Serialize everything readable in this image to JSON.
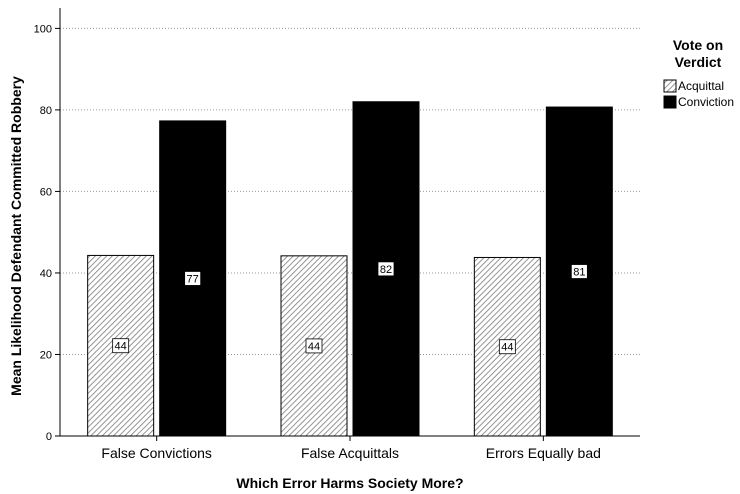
{
  "chart_data": {
    "type": "bar",
    "title": "",
    "xlabel": "Which Error Harms Society More?",
    "ylabel": "Mean Likelihood Defendant Committed Robbery",
    "ylim": [
      0,
      105
    ],
    "yticks": [
      0,
      20,
      40,
      60,
      80,
      100
    ],
    "grid": "horizontal dotted",
    "categories": [
      "False Convictions",
      "False Acquittals",
      "Errors Equally bad"
    ],
    "legend": {
      "title_line1": "Vote on",
      "title_line2": "Verdict",
      "placement": "right"
    },
    "series": [
      {
        "name": "Acquittal",
        "values": [
          44.3,
          44.2,
          43.8
        ],
        "data_labels": [
          "44",
          "44",
          "44"
        ],
        "fill": "hatched",
        "color": "#ffffff"
      },
      {
        "name": "Conviction",
        "values": [
          77.3,
          82.0,
          80.7
        ],
        "data_labels": [
          "77",
          "82",
          "81"
        ],
        "fill": "solid",
        "color": "#000000"
      }
    ]
  }
}
